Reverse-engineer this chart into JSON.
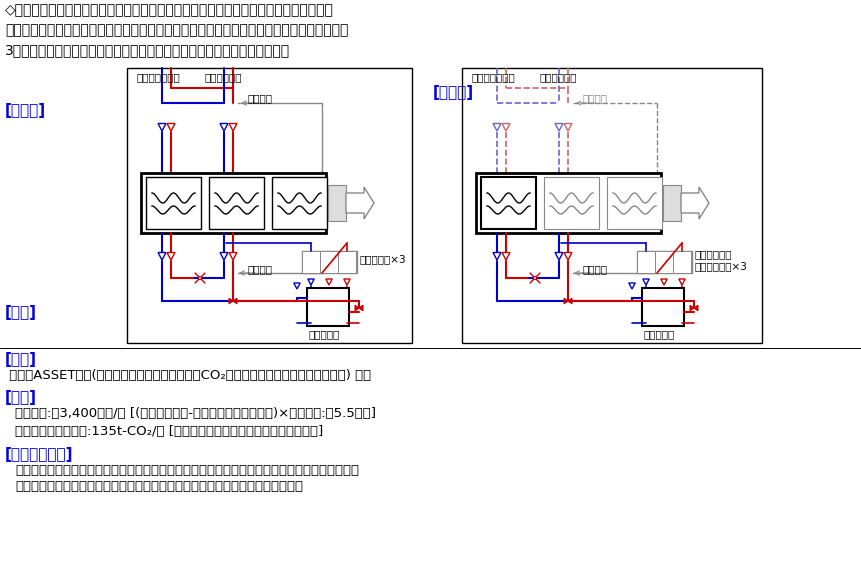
{
  "title_text": "◇空調機の暖房熱源に蒸気を使用していたが、蒸気ボイラーの重油使用量が増加してお\nり、エネルギー原単位の悪化を招いていた。そのため、温冷水切り替え式のヒートポンプを\n3台導入し、蒸気ボイラーを停止することにより、燃料費削減を目指した。",
  "label_before": "[改善前]",
  "label_after": "[改善後]",
  "label_invest": "[投資]",
  "label_effect": "[効果]",
  "label_caution": "[注意すべき点]",
  "invest_text": "環境省ASSET事業(先進対策の効率的実施によるCO₂排出量大幅削減事業設備補助事業) 活用",
  "effect_text1": "効果金額:約3,400千円/年 [(重油相当金額-ヒートポンプ電気料金)×暖房期間:約5.5ヶ月]",
  "effect_text2": "温室効果ガス削減量:135t-CO₂/年 [重油ボイラーを停止したことによる削減]",
  "caution_text1": "補助金受給にあたり、本件および他の省エネ施策を合わせ、既定の省エネルギー化を工場全体で",
  "caution_text2": "達成する条件がある。未達の場合、不足分の排出枠を購入する等の措置が必要。",
  "color_blue": "#0000CC",
  "color_red": "#CC0000",
  "color_gray": "#888888",
  "color_dblue": "#6666CC",
  "color_dred": "#CC6666",
  "color_black": "#000000",
  "color_label": "#0000DD",
  "bg_color": "#FFFFFF",
  "font_size_title": 10,
  "font_size_label": 11,
  "font_size_body": 9.5,
  "font_size_small": 7.5
}
